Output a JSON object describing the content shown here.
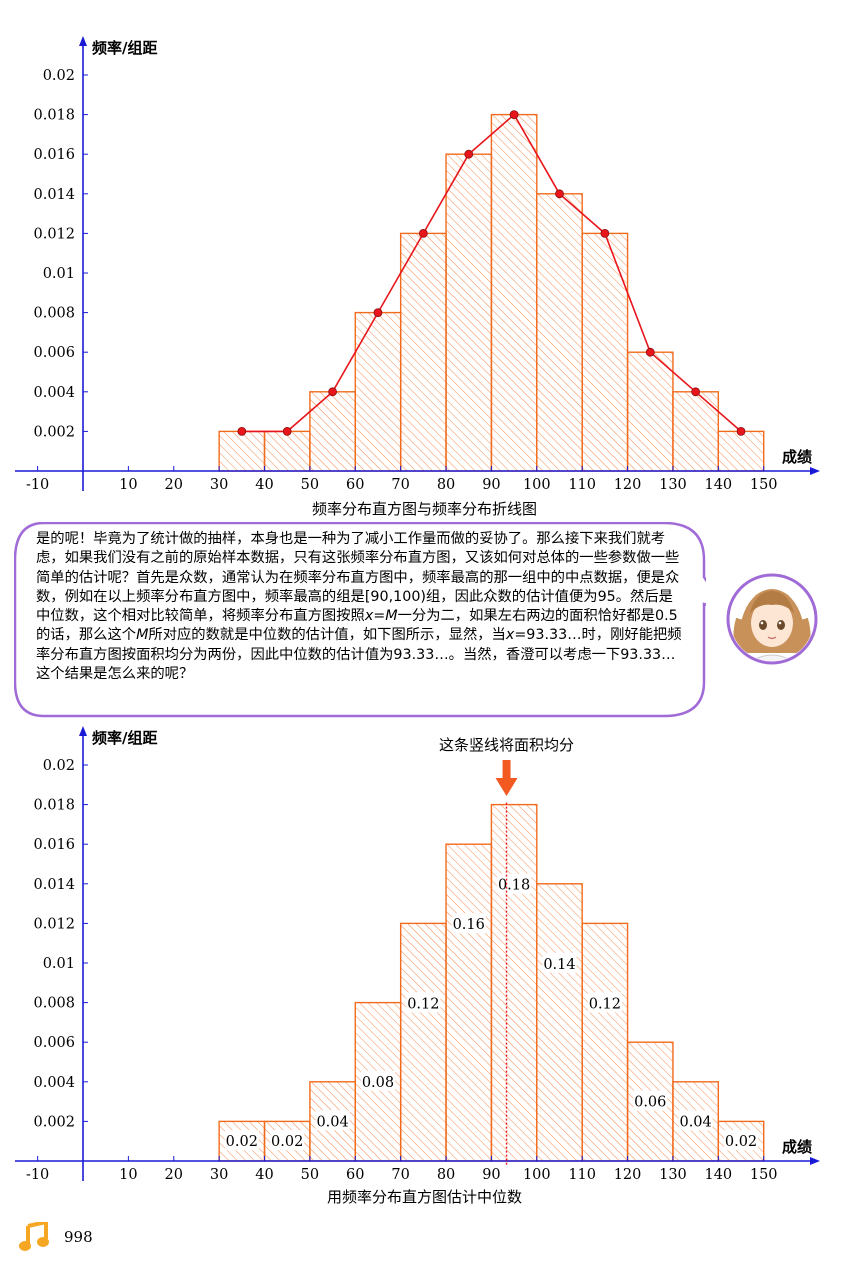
{
  "chart_data": [
    {
      "type": "bar",
      "ylabel": "频率/组距",
      "xlabel": "成绩",
      "x_ticks": [
        -10,
        10,
        20,
        30,
        40,
        50,
        60,
        70,
        80,
        90,
        100,
        110,
        120,
        130,
        140,
        150
      ],
      "y_ticks": [
        0.002,
        0.004,
        0.006,
        0.008,
        0.01,
        0.012,
        0.014,
        0.016,
        0.018,
        0.02
      ],
      "bins": [
        [
          30,
          40
        ],
        [
          40,
          50
        ],
        [
          50,
          60
        ],
        [
          60,
          70
        ],
        [
          70,
          80
        ],
        [
          80,
          90
        ],
        [
          90,
          100
        ],
        [
          100,
          110
        ],
        [
          110,
          120
        ],
        [
          120,
          130
        ],
        [
          130,
          140
        ],
        [
          140,
          150
        ]
      ],
      "values": [
        0.002,
        0.002,
        0.004,
        0.008,
        0.012,
        0.016,
        0.018,
        0.014,
        0.012,
        0.006,
        0.004,
        0.002
      ],
      "polyline": {
        "x": [
          35,
          45,
          55,
          65,
          75,
          85,
          95,
          105,
          115,
          125,
          135,
          145
        ],
        "y": [
          0.002,
          0.002,
          0.004,
          0.008,
          0.012,
          0.016,
          0.018,
          0.014,
          0.012,
          0.006,
          0.004,
          0.002
        ]
      },
      "xlim": [
        -15,
        162
      ],
      "ylim": [
        0,
        0.021
      ],
      "colors": {
        "bar": "#f26b1d",
        "line": "#e8161b",
        "point": "#e8161b",
        "axis": "#1a1ad6"
      }
    },
    {
      "type": "bar",
      "ylabel": "频率/组距",
      "xlabel": "成绩",
      "x_ticks": [
        -10,
        10,
        20,
        30,
        40,
        50,
        60,
        70,
        80,
        90,
        100,
        110,
        120,
        130,
        140,
        150
      ],
      "y_ticks": [
        0.002,
        0.004,
        0.006,
        0.008,
        0.01,
        0.012,
        0.014,
        0.016,
        0.018,
        0.02
      ],
      "bins": [
        [
          30,
          40
        ],
        [
          40,
          50
        ],
        [
          50,
          60
        ],
        [
          60,
          70
        ],
        [
          70,
          80
        ],
        [
          80,
          90
        ],
        [
          90,
          100
        ],
        [
          100,
          110
        ],
        [
          110,
          120
        ],
        [
          120,
          130
        ],
        [
          130,
          140
        ],
        [
          140,
          150
        ]
      ],
      "values": [
        0.002,
        0.002,
        0.004,
        0.008,
        0.012,
        0.016,
        0.018,
        0.014,
        0.012,
        0.006,
        0.004,
        0.002
      ],
      "area_labels": [
        "0.02",
        "0.02",
        "0.04",
        "0.08",
        "0.12",
        "0.16",
        "0.18",
        "0.14",
        "0.12",
        "0.06",
        "0.04",
        "0.02"
      ],
      "median_line_x": 93.33,
      "annotation": "这条竖线将面积均分",
      "xlim": [
        -15,
        162
      ],
      "ylim": [
        0,
        0.021
      ],
      "colors": {
        "bar": "#f26b1d",
        "median": "#e8161b",
        "arrow": "#f25a22",
        "axis": "#1a1ad6"
      }
    }
  ],
  "captions": {
    "chart1": "频率分布直方图与频率分布折线图",
    "chart2": "用频率分布直方图估计中位数"
  },
  "bubble": {
    "segments": [
      {
        "t": "是的呢！毕竟为了统计做的抽样，本身也是一种为了减小工作量而做的妥协了。那么接下来我们就考虑，如果我们没有之前的原始样本数据，只有这张频率分布直方图，又该如何对总体的一些参数做一些简单的估计呢？首先是众数，通常认为在频率分布直方图中，频率最高的那一组中的中点数据，便是众数，例如在以上频率分布直方图中，频率最高的组是[90,100)组，因此众数的估计值便为95。然后是中位数，这个相对比较简单，将频率分布直方图按照"
      },
      {
        "t": "x",
        "i": true
      },
      {
        "t": "="
      },
      {
        "t": "M",
        "i": true
      },
      {
        "t": "一分为二，如果左右两边的面积恰好都是0.5的话，那么这个"
      },
      {
        "t": "M",
        "i": true
      },
      {
        "t": "所对应的数就是中位数的估计值，如下图所示，显然，当"
      },
      {
        "t": "x",
        "i": true
      },
      {
        "t": "=93.33…时，刚好能把频率分布直方图按面积均分为两份，因此中位数的估计值为93.33…。当然，香澄可以考虑一下93.33…这个结果是怎么来的呢？"
      }
    ],
    "border_color": "#a06bd6"
  },
  "footer": {
    "page_number": "998",
    "icon": "music-note-icon",
    "icon_color": "#f5a623"
  }
}
